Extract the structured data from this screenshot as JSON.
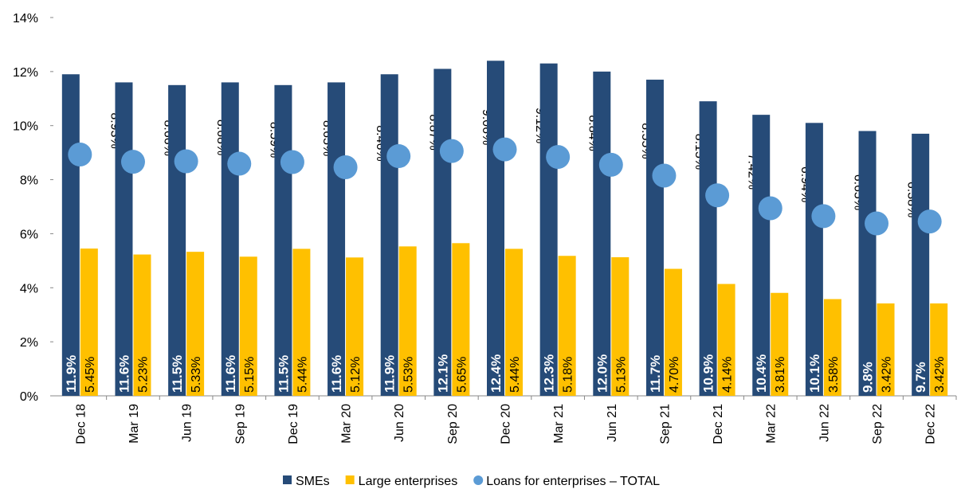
{
  "chart_data": {
    "type": "bar",
    "categories": [
      "Dec 18",
      "Mar 19",
      "Jun 19",
      "Sep 19",
      "Dec 19",
      "Mar 20",
      "Jun 20",
      "Sep 20",
      "Dec 20",
      "Mar 21",
      "Jun 21",
      "Sep 21",
      "Dec 21",
      "Mar 22",
      "Jun 22",
      "Sep 22",
      "Dec 22"
    ],
    "series": [
      {
        "name": "SMEs",
        "type": "bar",
        "color": "#264b78",
        "values": [
          11.9,
          11.6,
          11.5,
          11.6,
          11.5,
          11.6,
          11.9,
          12.1,
          12.4,
          12.3,
          12.0,
          11.7,
          10.9,
          10.4,
          10.1,
          9.8,
          9.7
        ],
        "value_labels": [
          "11.9%",
          "11.6%",
          "11.5%",
          "11.6%",
          "11.5%",
          "11.6%",
          "11.9%",
          "12.1%",
          "12.4%",
          "12.3%",
          "12.0%",
          "11.7%",
          "10.9%",
          "10.4%",
          "10.1%",
          "9.8%",
          "9.7%"
        ]
      },
      {
        "name": "Large enterprises",
        "type": "bar",
        "color": "#ffc000",
        "values": [
          5.45,
          5.23,
          5.33,
          5.15,
          5.44,
          5.12,
          5.53,
          5.65,
          5.44,
          5.18,
          5.13,
          4.7,
          4.14,
          3.81,
          3.58,
          3.42,
          3.42
        ],
        "value_labels": [
          "5.45%",
          "5.23%",
          "5.33%",
          "5.15%",
          "5.44%",
          "5.12%",
          "5.53%",
          "5.65%",
          "5.44%",
          "5.18%",
          "5.13%",
          "4.70%",
          "4.14%",
          "3.81%",
          "3.58%",
          "3.42%",
          "3.42%"
        ]
      },
      {
        "name": "Loans for enterprises – TOTAL",
        "type": "scatter",
        "color": "#5b9bd5",
        "values": [
          8.93,
          8.66,
          8.68,
          8.59,
          8.65,
          8.46,
          8.87,
          9.06,
          9.12,
          8.84,
          8.55,
          8.15,
          7.42,
          6.94,
          6.65,
          6.38,
          6.45
        ],
        "value_labels": [
          "8.93%",
          "8.66%",
          "8.68%",
          "8.59%",
          "8.65%",
          "8.46%",
          "8.87%",
          "9.06%",
          "9.12%",
          "8.84%",
          "8.55%",
          "8.15%",
          "7.42%",
          "6.94%",
          "6.65%",
          "6.38%",
          "6.45%"
        ]
      }
    ],
    "ylim": [
      0,
      14
    ],
    "yticks": [
      {
        "value": 0,
        "label": "0%"
      },
      {
        "value": 2,
        "label": "2%"
      },
      {
        "value": 4,
        "label": "4%"
      },
      {
        "value": 6,
        "label": "6%"
      },
      {
        "value": 8,
        "label": "8%"
      },
      {
        "value": 10,
        "label": "10%"
      },
      {
        "value": 12,
        "label": "12%"
      },
      {
        "value": 14,
        "label": "14%"
      }
    ],
    "legend": "bottom"
  }
}
